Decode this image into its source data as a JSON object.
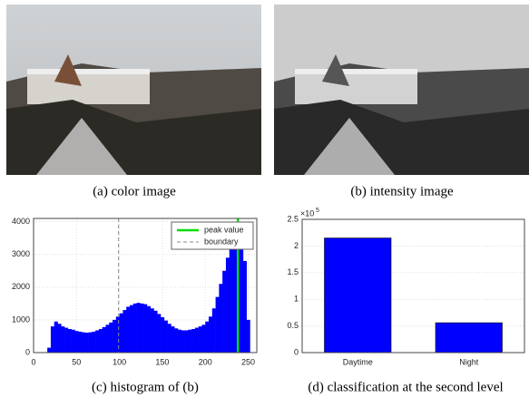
{
  "figure": {
    "captions": [
      "(a) color image",
      "(b) intensity image",
      "(c) histogram of (b)",
      "(d) classification at the second level"
    ]
  },
  "chart_data": [
    {
      "type": "histogram",
      "bins": [
        0,
        4,
        8,
        12,
        16,
        20,
        24,
        28,
        32,
        36,
        40,
        44,
        48,
        52,
        56,
        60,
        64,
        68,
        72,
        76,
        80,
        84,
        88,
        92,
        96,
        100,
        104,
        108,
        112,
        116,
        120,
        124,
        128,
        132,
        136,
        140,
        144,
        148,
        152,
        156,
        160,
        164,
        168,
        172,
        176,
        180,
        184,
        188,
        192,
        196,
        200,
        204,
        208,
        212,
        216,
        220,
        224,
        228,
        232,
        236,
        240,
        244,
        248,
        252,
        256
      ],
      "values": [
        0,
        0,
        0,
        0,
        150,
        800,
        950,
        880,
        800,
        760,
        720,
        700,
        660,
        640,
        620,
        610,
        620,
        640,
        680,
        720,
        780,
        850,
        920,
        1000,
        1100,
        1200,
        1300,
        1400,
        1450,
        1500,
        1520,
        1500,
        1480,
        1420,
        1350,
        1280,
        1180,
        1080,
        980,
        880,
        800,
        740,
        700,
        680,
        680,
        700,
        720,
        760,
        800,
        850,
        950,
        1100,
        1350,
        1700,
        2100,
        2500,
        2900,
        3200,
        3600,
        3900,
        3400,
        2800,
        1000,
        0
      ],
      "color": "#0000ff",
      "xlim": [
        0,
        260
      ],
      "xticks": [
        0,
        50,
        100,
        150,
        200,
        250
      ],
      "ylim": [
        0,
        4100
      ],
      "yticks": [
        0,
        1000,
        2000,
        3000,
        4000
      ],
      "grid": true,
      "legend": "upper-right",
      "vlines": [
        {
          "name": "peak value",
          "x": 238,
          "color": "#00dd00",
          "style": "solid"
        },
        {
          "name": "boundary",
          "x": 99,
          "color": "#888888",
          "style": "dashed"
        }
      ]
    },
    {
      "type": "bar",
      "categories": [
        "Daytime",
        "Night"
      ],
      "values": [
        215000,
        56000
      ],
      "color": "#0000ff",
      "ylim": [
        0,
        250000
      ],
      "yticks": [
        0,
        {
          "value": 50000,
          "label": "0.5"
        },
        {
          "value": 100000,
          "label": "1"
        },
        {
          "value": 150000,
          "label": "1.5"
        },
        {
          "value": 200000,
          "label": "2"
        },
        {
          "value": 250000,
          "label": "2.5"
        }
      ],
      "y_offset_base": "×10",
      "y_offset_power": "5",
      "grid": true
    }
  ]
}
